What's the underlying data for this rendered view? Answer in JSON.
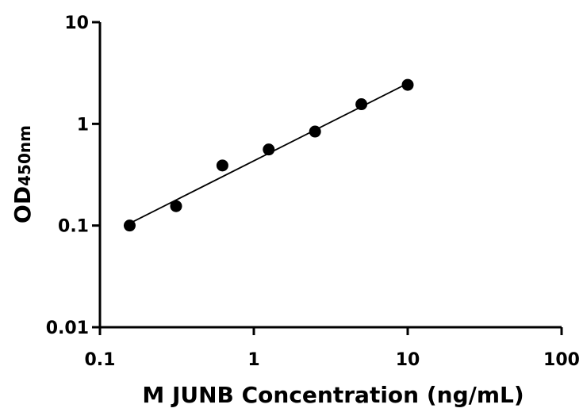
{
  "chart_data": {
    "type": "scatter",
    "title": "",
    "xlabel": "M JUNB Concentration (ng/mL)",
    "ylabel_main": "OD",
    "ylabel_sub": "450nm",
    "x_scale": "log",
    "y_scale": "log",
    "xlim": [
      0.1,
      100
    ],
    "ylim": [
      0.01,
      10
    ],
    "x_ticks": [
      {
        "value": 0.1,
        "label": "0.1"
      },
      {
        "value": 1,
        "label": "1"
      },
      {
        "value": 10,
        "label": "10"
      },
      {
        "value": 100,
        "label": "100"
      }
    ],
    "y_ticks": [
      {
        "value": 0.01,
        "label": "0.01"
      },
      {
        "value": 0.1,
        "label": "0.1"
      },
      {
        "value": 1,
        "label": "1"
      },
      {
        "value": 10,
        "label": "10"
      }
    ],
    "series": [
      {
        "x": [
          0.156,
          0.3125,
          0.625,
          1.25,
          2.5,
          5,
          10
        ],
        "y": [
          0.1,
          0.155,
          0.39,
          0.56,
          0.84,
          1.56,
          2.42
        ]
      }
    ],
    "fit_line": {
      "x": [
        0.156,
        10
      ],
      "y": [
        0.105,
        2.5
      ]
    },
    "grid": false,
    "legend": "none",
    "colors": {
      "points": "#000000",
      "line": "#000000",
      "axes": "#000000"
    }
  }
}
